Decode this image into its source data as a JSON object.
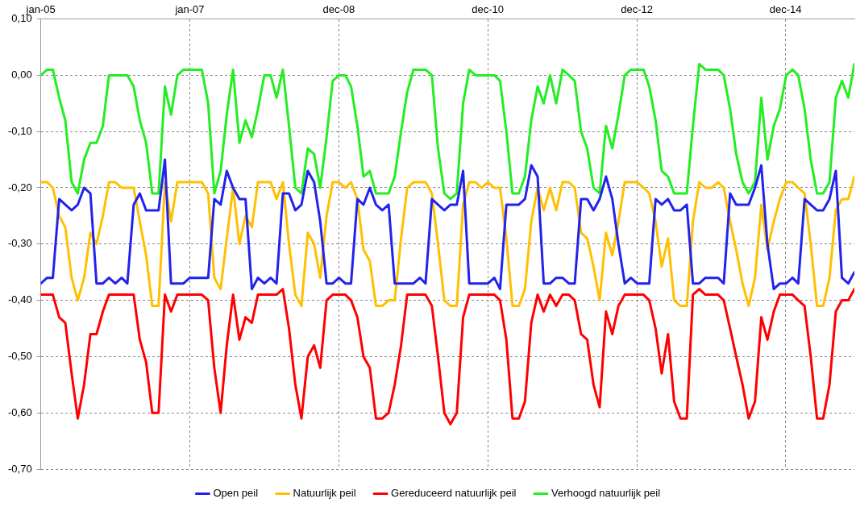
{
  "chart_data": {
    "type": "line",
    "legend": "bottom",
    "grid": true,
    "marker": "none",
    "line_style": "solid",
    "xlim": [
      "2005-01-01",
      "2015-12-01"
    ],
    "xticks": [
      {
        "value": "2005-01-01",
        "label": "jan-05"
      },
      {
        "value": "2007-01-01",
        "label": "jan-07"
      },
      {
        "value": "2008-12-31",
        "label": "dec-08"
      },
      {
        "value": "2010-12-31",
        "label": "dec-10"
      },
      {
        "value": "2012-12-30",
        "label": "dec-12"
      },
      {
        "value": "2014-12-29",
        "label": "dec-14"
      }
    ],
    "ylim": [
      -0.7,
      0.1
    ],
    "yticks": [
      {
        "value": -0.7,
        "label": "-0,70"
      },
      {
        "value": -0.6,
        "label": "-0,60"
      },
      {
        "value": -0.5,
        "label": "-0,50"
      },
      {
        "value": -0.4,
        "label": "-0,40"
      },
      {
        "value": -0.3,
        "label": "-0,30"
      },
      {
        "value": -0.2,
        "label": "-0,20"
      },
      {
        "value": -0.1,
        "label": "-0,10"
      },
      {
        "value": 0,
        "label": "0,00"
      },
      {
        "value": 0.1,
        "label": "0,10"
      }
    ],
    "x": [
      "2005-01",
      "2005-02",
      "2005-03",
      "2005-04",
      "2005-05",
      "2005-06",
      "2005-07",
      "2005-08",
      "2005-09",
      "2005-10",
      "2005-11",
      "2005-12",
      "2006-01",
      "2006-02",
      "2006-03",
      "2006-04",
      "2006-05",
      "2006-06",
      "2006-07",
      "2006-08",
      "2006-09",
      "2006-10",
      "2006-11",
      "2006-12",
      "2007-01",
      "2007-02",
      "2007-03",
      "2007-04",
      "2007-05",
      "2007-06",
      "2007-07",
      "2007-08",
      "2007-09",
      "2007-10",
      "2007-11",
      "2007-12",
      "2008-01",
      "2008-02",
      "2008-03",
      "2008-04",
      "2008-05",
      "2008-06",
      "2008-07",
      "2008-08",
      "2008-09",
      "2008-10",
      "2008-11",
      "2008-12",
      "2009-01",
      "2009-02",
      "2009-03",
      "2009-04",
      "2009-05",
      "2009-06",
      "2009-07",
      "2009-08",
      "2009-09",
      "2009-10",
      "2009-11",
      "2009-12",
      "2010-01",
      "2010-02",
      "2010-03",
      "2010-04",
      "2010-05",
      "2010-06",
      "2010-07",
      "2010-08",
      "2010-09",
      "2010-10",
      "2010-11",
      "2010-12",
      "2011-01",
      "2011-02",
      "2011-03",
      "2011-04",
      "2011-05",
      "2011-06",
      "2011-07",
      "2011-08",
      "2011-09",
      "2011-10",
      "2011-11",
      "2011-12",
      "2012-01",
      "2012-02",
      "2012-03",
      "2012-04",
      "2012-05",
      "2012-06",
      "2012-07",
      "2012-08",
      "2012-09",
      "2012-10",
      "2012-11",
      "2012-12",
      "2013-01",
      "2013-02",
      "2013-03",
      "2013-04",
      "2013-05",
      "2013-06",
      "2013-07",
      "2013-08",
      "2013-09",
      "2013-10",
      "2013-11",
      "2013-12",
      "2014-01",
      "2014-02",
      "2014-03",
      "2014-04",
      "2014-05",
      "2014-06",
      "2014-07",
      "2014-08",
      "2014-09",
      "2014-10",
      "2014-11",
      "2014-12",
      "2015-01",
      "2015-02",
      "2015-03",
      "2015-04",
      "2015-05",
      "2015-06",
      "2015-07",
      "2015-08",
      "2015-09",
      "2015-10",
      "2015-11",
      "2015-12"
    ],
    "series": [
      {
        "name": "Open peil",
        "color": "#2222ee",
        "values": [
          -0.37,
          -0.36,
          -0.36,
          -0.22,
          -0.23,
          -0.24,
          -0.23,
          -0.2,
          -0.21,
          -0.37,
          -0.37,
          -0.36,
          -0.37,
          -0.36,
          -0.37,
          -0.23,
          -0.21,
          -0.24,
          -0.24,
          -0.24,
          -0.15,
          -0.37,
          -0.37,
          -0.37,
          -0.36,
          -0.36,
          -0.36,
          -0.36,
          -0.22,
          -0.23,
          -0.17,
          -0.2,
          -0.22,
          -0.22,
          -0.38,
          -0.36,
          -0.37,
          -0.36,
          -0.37,
          -0.21,
          -0.21,
          -0.24,
          -0.23,
          -0.17,
          -0.19,
          -0.26,
          -0.37,
          -0.37,
          -0.36,
          -0.37,
          -0.37,
          -0.22,
          -0.23,
          -0.2,
          -0.23,
          -0.24,
          -0.23,
          -0.37,
          -0.37,
          -0.37,
          -0.37,
          -0.36,
          -0.37,
          -0.22,
          -0.23,
          -0.24,
          -0.23,
          -0.23,
          -0.17,
          -0.37,
          -0.37,
          -0.37,
          -0.37,
          -0.36,
          -0.38,
          -0.23,
          -0.23,
          -0.23,
          -0.22,
          -0.16,
          -0.18,
          -0.37,
          -0.37,
          -0.36,
          -0.36,
          -0.37,
          -0.37,
          -0.22,
          -0.22,
          -0.24,
          -0.22,
          -0.18,
          -0.22,
          -0.3,
          -0.37,
          -0.36,
          -0.37,
          -0.37,
          -0.37,
          -0.22,
          -0.23,
          -0.22,
          -0.24,
          -0.24,
          -0.23,
          -0.37,
          -0.37,
          -0.36,
          -0.36,
          -0.36,
          -0.37,
          -0.21,
          -0.23,
          -0.23,
          -0.23,
          -0.2,
          -0.16,
          -0.3,
          -0.38,
          -0.37,
          -0.37,
          -0.36,
          -0.37,
          -0.22,
          -0.23,
          -0.24,
          -0.24,
          -0.22,
          -0.17,
          -0.36,
          -0.37,
          -0.35
        ]
      },
      {
        "name": "Natuurlijk peil",
        "color": "#ffc000",
        "values": [
          -0.19,
          -0.19,
          -0.2,
          -0.25,
          -0.27,
          -0.36,
          -0.4,
          -0.36,
          -0.28,
          -0.3,
          -0.25,
          -0.19,
          -0.19,
          -0.2,
          -0.2,
          -0.2,
          -0.26,
          -0.32,
          -0.41,
          -0.41,
          -0.19,
          -0.26,
          -0.19,
          -0.19,
          -0.19,
          -0.19,
          -0.19,
          -0.21,
          -0.36,
          -0.38,
          -0.29,
          -0.2,
          -0.3,
          -0.25,
          -0.27,
          -0.19,
          -0.19,
          -0.19,
          -0.22,
          -0.19,
          -0.3,
          -0.39,
          -0.41,
          -0.28,
          -0.3,
          -0.36,
          -0.25,
          -0.19,
          -0.19,
          -0.2,
          -0.19,
          -0.22,
          -0.31,
          -0.33,
          -0.41,
          -0.41,
          -0.4,
          -0.4,
          -0.29,
          -0.2,
          -0.19,
          -0.19,
          -0.19,
          -0.21,
          -0.3,
          -0.4,
          -0.41,
          -0.41,
          -0.23,
          -0.19,
          -0.19,
          -0.2,
          -0.19,
          -0.2,
          -0.2,
          -0.29,
          -0.41,
          -0.41,
          -0.38,
          -0.26,
          -0.2,
          -0.24,
          -0.2,
          -0.24,
          -0.19,
          -0.19,
          -0.2,
          -0.28,
          -0.29,
          -0.34,
          -0.4,
          -0.28,
          -0.32,
          -0.26,
          -0.19,
          -0.19,
          -0.19,
          -0.2,
          -0.21,
          -0.26,
          -0.34,
          -0.29,
          -0.4,
          -0.41,
          -0.41,
          -0.26,
          -0.19,
          -0.2,
          -0.2,
          -0.19,
          -0.2,
          -0.26,
          -0.31,
          -0.37,
          -0.41,
          -0.36,
          -0.23,
          -0.31,
          -0.26,
          -0.22,
          -0.19,
          -0.19,
          -0.2,
          -0.21,
          -0.3,
          -0.41,
          -0.41,
          -0.36,
          -0.24,
          -0.22,
          -0.22,
          -0.18
        ]
      },
      {
        "name": "Gereduceerd natuurlijk peil",
        "color": "#ff0000",
        "values": [
          -0.39,
          -0.39,
          -0.39,
          -0.43,
          -0.44,
          -0.53,
          -0.61,
          -0.55,
          -0.46,
          -0.46,
          -0.42,
          -0.39,
          -0.39,
          -0.39,
          -0.39,
          -0.39,
          -0.47,
          -0.51,
          -0.6,
          -0.6,
          -0.39,
          -0.42,
          -0.39,
          -0.39,
          -0.39,
          -0.39,
          -0.39,
          -0.4,
          -0.52,
          -0.6,
          -0.48,
          -0.39,
          -0.47,
          -0.43,
          -0.44,
          -0.39,
          -0.39,
          -0.39,
          -0.39,
          -0.38,
          -0.45,
          -0.55,
          -0.61,
          -0.5,
          -0.48,
          -0.52,
          -0.4,
          -0.39,
          -0.39,
          -0.39,
          -0.4,
          -0.43,
          -0.5,
          -0.52,
          -0.61,
          -0.61,
          -0.6,
          -0.55,
          -0.48,
          -0.39,
          -0.39,
          -0.39,
          -0.39,
          -0.41,
          -0.5,
          -0.6,
          -0.62,
          -0.6,
          -0.43,
          -0.39,
          -0.39,
          -0.39,
          -0.39,
          -0.39,
          -0.4,
          -0.47,
          -0.61,
          -0.61,
          -0.58,
          -0.44,
          -0.39,
          -0.42,
          -0.39,
          -0.41,
          -0.39,
          -0.39,
          -0.4,
          -0.46,
          -0.47,
          -0.55,
          -0.59,
          -0.42,
          -0.46,
          -0.41,
          -0.39,
          -0.39,
          -0.39,
          -0.39,
          -0.4,
          -0.45,
          -0.53,
          -0.46,
          -0.58,
          -0.61,
          -0.61,
          -0.39,
          -0.38,
          -0.39,
          -0.39,
          -0.39,
          -0.4,
          -0.45,
          -0.5,
          -0.55,
          -0.61,
          -0.58,
          -0.43,
          -0.47,
          -0.42,
          -0.39,
          -0.39,
          -0.39,
          -0.4,
          -0.41,
          -0.5,
          -0.61,
          -0.61,
          -0.55,
          -0.42,
          -0.4,
          -0.4,
          -0.38
        ]
      },
      {
        "name": "Verhoogd natuurlijk peil",
        "color": "#22ee22",
        "values": [
          0.0,
          0.01,
          0.01,
          -0.04,
          -0.08,
          -0.19,
          -0.21,
          -0.15,
          -0.12,
          -0.12,
          -0.09,
          0.0,
          0.0,
          0.0,
          0.0,
          -0.02,
          -0.08,
          -0.12,
          -0.21,
          -0.21,
          -0.02,
          -0.07,
          0.0,
          0.01,
          0.01,
          0.01,
          0.01,
          -0.05,
          -0.21,
          -0.17,
          -0.07,
          0.01,
          -0.12,
          -0.08,
          -0.11,
          -0.06,
          0.0,
          0.0,
          -0.04,
          0.01,
          -0.09,
          -0.2,
          -0.21,
          -0.13,
          -0.14,
          -0.2,
          -0.11,
          -0.01,
          0.0,
          0.0,
          -0.02,
          -0.09,
          -0.18,
          -0.17,
          -0.21,
          -0.21,
          -0.21,
          -0.18,
          -0.1,
          -0.03,
          0.01,
          0.01,
          0.01,
          0.0,
          -0.13,
          -0.21,
          -0.22,
          -0.21,
          -0.05,
          0.01,
          0.0,
          0.0,
          0.0,
          0.0,
          -0.01,
          -0.1,
          -0.21,
          -0.21,
          -0.18,
          -0.08,
          -0.02,
          -0.05,
          0.0,
          -0.05,
          0.01,
          0.0,
          -0.01,
          -0.1,
          -0.13,
          -0.2,
          -0.21,
          -0.09,
          -0.13,
          -0.07,
          0.0,
          0.01,
          0.01,
          0.01,
          -0.02,
          -0.08,
          -0.17,
          -0.18,
          -0.21,
          -0.21,
          -0.21,
          -0.09,
          0.02,
          0.01,
          0.01,
          0.01,
          0.0,
          -0.06,
          -0.14,
          -0.19,
          -0.21,
          -0.19,
          -0.04,
          -0.15,
          -0.09,
          -0.06,
          0.0,
          0.01,
          0.0,
          -0.06,
          -0.15,
          -0.21,
          -0.21,
          -0.19,
          -0.04,
          -0.01,
          -0.04,
          0.02
        ]
      }
    ]
  }
}
